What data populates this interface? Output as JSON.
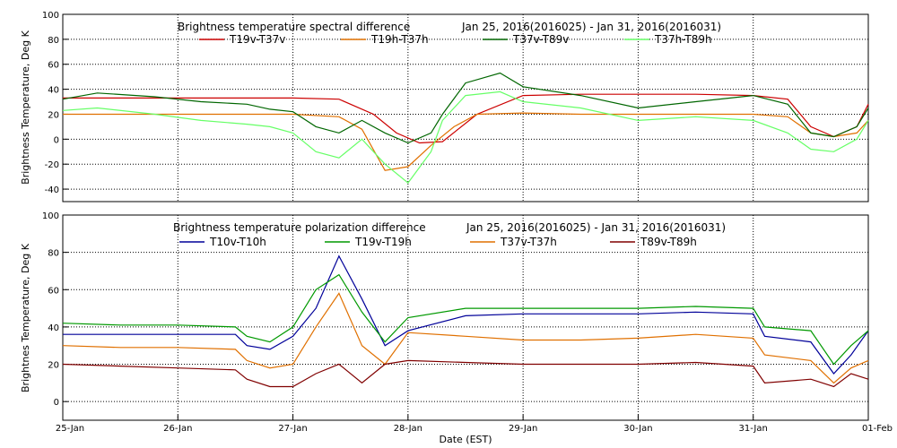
{
  "chart_data": [
    {
      "type": "line",
      "title": "Brightness temperature spectral difference",
      "subtitle": "Jan 25, 2016(2016025) - Jan 31, 2016(2016031)",
      "ylabel": "Brightness Temperature, Deg K",
      "ylim": [
        -50,
        100
      ],
      "yticks": [
        "-40",
        "-20",
        "0",
        "20",
        "40",
        "60",
        "80",
        "100"
      ],
      "xlim": [
        0,
        7
      ],
      "grid": true,
      "legend_position": "top",
      "series": [
        {
          "name": "T19v-T37v",
          "color": "#cc0000",
          "x": [
            0,
            0.5,
            1.0,
            1.5,
            2.0,
            2.4,
            2.7,
            2.9,
            3.1,
            3.3,
            3.6,
            4.0,
            4.5,
            5.0,
            5.5,
            6.0,
            6.3,
            6.5,
            6.7,
            6.9,
            7.0
          ],
          "y": [
            33,
            33,
            33,
            33,
            33,
            32,
            20,
            5,
            -3,
            -2,
            20,
            35,
            36,
            36,
            36,
            35,
            32,
            10,
            2,
            10,
            28
          ]
        },
        {
          "name": "T19h-T37h",
          "color": "#e07000",
          "x": [
            0,
            0.5,
            1.0,
            1.5,
            2.0,
            2.4,
            2.6,
            2.8,
            3.0,
            3.2,
            3.4,
            3.6,
            4.0,
            4.5,
            5.0,
            5.5,
            6.0,
            6.3,
            6.5,
            6.7,
            6.9,
            7.0
          ],
          "y": [
            20,
            20,
            20,
            20,
            20,
            18,
            8,
            -25,
            -22,
            -5,
            10,
            20,
            21,
            20,
            20,
            20,
            20,
            18,
            5,
            2,
            5,
            15
          ]
        },
        {
          "name": "T37v-T89v",
          "color": "#006600",
          "x": [
            0,
            0.3,
            0.8,
            1.2,
            1.6,
            1.8,
            2.0,
            2.2,
            2.4,
            2.6,
            2.8,
            3.0,
            3.2,
            3.3,
            3.5,
            3.8,
            4.0,
            4.5,
            5.0,
            5.5,
            6.0,
            6.3,
            6.5,
            6.7,
            6.9,
            7.0
          ],
          "y": [
            32,
            37,
            34,
            30,
            28,
            24,
            22,
            10,
            5,
            15,
            5,
            -3,
            5,
            20,
            45,
            53,
            42,
            35,
            25,
            30,
            35,
            28,
            5,
            2,
            10,
            25
          ]
        },
        {
          "name": "T37h-T89h",
          "color": "#66ff66",
          "x": [
            0,
            0.3,
            0.8,
            1.2,
            1.6,
            1.8,
            2.0,
            2.2,
            2.4,
            2.6,
            2.8,
            3.0,
            3.2,
            3.3,
            3.5,
            3.8,
            4.0,
            4.5,
            5.0,
            5.5,
            6.0,
            6.3,
            6.5,
            6.7,
            6.9,
            7.0
          ],
          "y": [
            23,
            25,
            20,
            15,
            12,
            10,
            5,
            -10,
            -15,
            0,
            -20,
            -35,
            -10,
            15,
            35,
            38,
            30,
            25,
            15,
            18,
            15,
            5,
            -8,
            -10,
            0,
            15
          ]
        }
      ]
    },
    {
      "type": "line",
      "title": "Brightness temperature polarization difference",
      "subtitle": "Jan 25, 2016(2016025) - Jan 31, 2016(2016031)",
      "ylabel": "Brightnes Temperature, Deg K",
      "xlabel": "Date (EST)",
      "ylim": [
        -10,
        100
      ],
      "yticks": [
        "0",
        "20",
        "40",
        "60",
        "80",
        "100"
      ],
      "xlim": [
        0,
        7
      ],
      "xticks": [
        "25-Jan",
        "26-Jan",
        "27-Jan",
        "28-Jan",
        "29-Jan",
        "30-Jan",
        "31-Jan",
        "01-Feb"
      ],
      "grid": true,
      "legend_position": "top",
      "series": [
        {
          "name": "T10v-T10h",
          "color": "#000099",
          "x": [
            0,
            0.5,
            1.0,
            1.5,
            1.6,
            1.8,
            2.0,
            2.2,
            2.4,
            2.6,
            2.8,
            3.0,
            3.5,
            4.0,
            4.5,
            5.0,
            5.5,
            6.0,
            6.1,
            6.5,
            6.7,
            6.85,
            7.0
          ],
          "y": [
            36,
            36,
            36,
            36,
            30,
            28,
            35,
            50,
            78,
            55,
            30,
            38,
            46,
            47,
            47,
            47,
            48,
            47,
            35,
            32,
            15,
            25,
            38
          ]
        },
        {
          "name": "T19v-T19h",
          "color": "#009900",
          "x": [
            0,
            0.5,
            1.0,
            1.5,
            1.6,
            1.8,
            2.0,
            2.2,
            2.4,
            2.6,
            2.8,
            3.0,
            3.5,
            4.0,
            4.5,
            5.0,
            5.5,
            6.0,
            6.1,
            6.5,
            6.7,
            6.85,
            7.0
          ],
          "y": [
            42,
            41,
            41,
            40,
            35,
            32,
            40,
            60,
            68,
            48,
            32,
            45,
            50,
            50,
            50,
            50,
            51,
            50,
            40,
            38,
            20,
            30,
            38
          ]
        },
        {
          "name": "T37v-T37h",
          "color": "#e07000",
          "x": [
            0,
            0.5,
            1.0,
            1.5,
            1.6,
            1.8,
            2.0,
            2.2,
            2.4,
            2.6,
            2.8,
            3.0,
            3.5,
            4.0,
            4.5,
            5.0,
            5.5,
            6.0,
            6.1,
            6.5,
            6.7,
            6.85,
            7.0
          ],
          "y": [
            30,
            29,
            29,
            28,
            22,
            18,
            20,
            40,
            58,
            30,
            20,
            37,
            35,
            33,
            33,
            34,
            36,
            34,
            25,
            22,
            10,
            18,
            22
          ]
        },
        {
          "name": "T89v-T89h",
          "color": "#800000",
          "x": [
            0,
            0.5,
            1.0,
            1.5,
            1.6,
            1.8,
            2.0,
            2.2,
            2.4,
            2.6,
            2.8,
            3.0,
            3.5,
            4.0,
            4.5,
            5.0,
            5.5,
            6.0,
            6.1,
            6.5,
            6.7,
            6.85,
            7.0
          ],
          "y": [
            20,
            19,
            18,
            17,
            12,
            8,
            8,
            15,
            20,
            10,
            20,
            22,
            21,
            20,
            20,
            20,
            21,
            19,
            10,
            12,
            8,
            15,
            12
          ]
        }
      ]
    }
  ]
}
